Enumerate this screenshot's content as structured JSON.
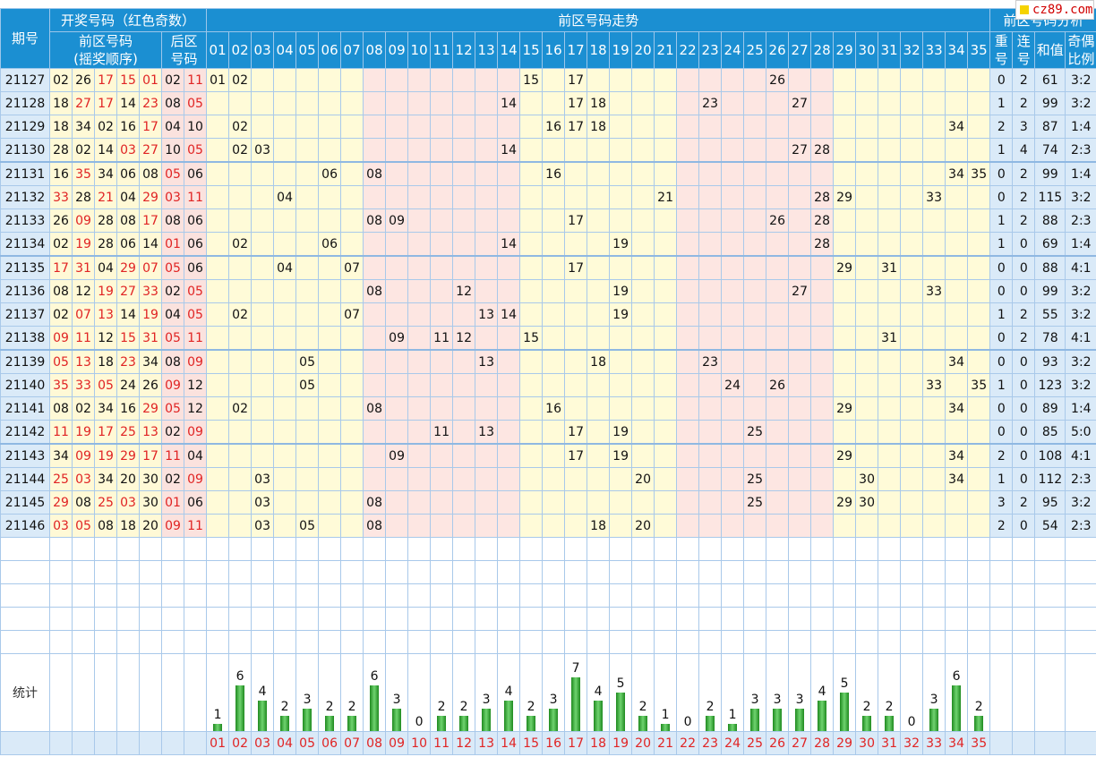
{
  "watermark": "cz89.com",
  "headers": {
    "period": "期号",
    "winning": "开奖号码（红色奇数）",
    "front_zone": "前区号码",
    "front_order": "(摇奖顺序)",
    "back_zone": "后区",
    "back_code": "号码",
    "trend": "前区号码走势",
    "analysis": "前区号码分析",
    "repeat_a": "重",
    "repeat_b": "号",
    "consec_a": "连",
    "consec_b": "号",
    "sum": "和值",
    "ratio_a": "奇偶",
    "ratio_b": "比例",
    "stat": "统计"
  },
  "columns": [
    "01",
    "02",
    "03",
    "04",
    "05",
    "06",
    "07",
    "08",
    "09",
    "10",
    "11",
    "12",
    "13",
    "14",
    "15",
    "16",
    "17",
    "18",
    "19",
    "20",
    "21",
    "22",
    "23",
    "24",
    "25",
    "26",
    "27",
    "28",
    "29",
    "30",
    "31",
    "32",
    "33",
    "34",
    "35"
  ],
  "chart_data": {
    "type": "table",
    "draws": [
      {
        "period": "21127",
        "front": [
          "02",
          "26",
          "17",
          "15",
          "01"
        ],
        "back": [
          "02",
          "11"
        ],
        "repeat": "0",
        "consec": "2",
        "sum": "61",
        "ratio": "3:2"
      },
      {
        "period": "21128",
        "front": [
          "18",
          "27",
          "17",
          "14",
          "23"
        ],
        "back": [
          "08",
          "05"
        ],
        "repeat": "1",
        "consec": "2",
        "sum": "99",
        "ratio": "3:2"
      },
      {
        "period": "21129",
        "front": [
          "18",
          "34",
          "02",
          "16",
          "17"
        ],
        "back": [
          "04",
          "10"
        ],
        "repeat": "2",
        "consec": "3",
        "sum": "87",
        "ratio": "1:4"
      },
      {
        "period": "21130",
        "front": [
          "28",
          "02",
          "14",
          "03",
          "27"
        ],
        "back": [
          "10",
          "05"
        ],
        "repeat": "1",
        "consec": "4",
        "sum": "74",
        "ratio": "2:3"
      },
      {
        "period": "21131",
        "front": [
          "16",
          "35",
          "34",
          "06",
          "08"
        ],
        "back": [
          "05",
          "06"
        ],
        "repeat": "0",
        "consec": "2",
        "sum": "99",
        "ratio": "1:4"
      },
      {
        "period": "21132",
        "front": [
          "33",
          "28",
          "21",
          "04",
          "29"
        ],
        "back": [
          "03",
          "11"
        ],
        "repeat": "0",
        "consec": "2",
        "sum": "115",
        "ratio": "3:2"
      },
      {
        "period": "21133",
        "front": [
          "26",
          "09",
          "28",
          "08",
          "17"
        ],
        "back": [
          "08",
          "06"
        ],
        "repeat": "1",
        "consec": "2",
        "sum": "88",
        "ratio": "2:3"
      },
      {
        "period": "21134",
        "front": [
          "02",
          "19",
          "28",
          "06",
          "14"
        ],
        "back": [
          "01",
          "06"
        ],
        "repeat": "1",
        "consec": "0",
        "sum": "69",
        "ratio": "1:4"
      },
      {
        "period": "21135",
        "front": [
          "17",
          "31",
          "04",
          "29",
          "07"
        ],
        "back": [
          "05",
          "06"
        ],
        "repeat": "0",
        "consec": "0",
        "sum": "88",
        "ratio": "4:1"
      },
      {
        "period": "21136",
        "front": [
          "08",
          "12",
          "19",
          "27",
          "33"
        ],
        "back": [
          "02",
          "05"
        ],
        "repeat": "0",
        "consec": "0",
        "sum": "99",
        "ratio": "3:2"
      },
      {
        "period": "21137",
        "front": [
          "02",
          "07",
          "13",
          "14",
          "19"
        ],
        "back": [
          "04",
          "05"
        ],
        "repeat": "1",
        "consec": "2",
        "sum": "55",
        "ratio": "3:2"
      },
      {
        "period": "21138",
        "front": [
          "09",
          "11",
          "12",
          "15",
          "31"
        ],
        "back": [
          "05",
          "11"
        ],
        "repeat": "0",
        "consec": "2",
        "sum": "78",
        "ratio": "4:1"
      },
      {
        "period": "21139",
        "front": [
          "05",
          "13",
          "18",
          "23",
          "34"
        ],
        "back": [
          "08",
          "09"
        ],
        "repeat": "0",
        "consec": "0",
        "sum": "93",
        "ratio": "3:2"
      },
      {
        "period": "21140",
        "front": [
          "35",
          "33",
          "05",
          "24",
          "26"
        ],
        "back": [
          "09",
          "12"
        ],
        "repeat": "1",
        "consec": "0",
        "sum": "123",
        "ratio": "3:2"
      },
      {
        "period": "21141",
        "front": [
          "08",
          "02",
          "34",
          "16",
          "29"
        ],
        "back": [
          "05",
          "12"
        ],
        "repeat": "0",
        "consec": "0",
        "sum": "89",
        "ratio": "1:4"
      },
      {
        "period": "21142",
        "front": [
          "11",
          "19",
          "17",
          "25",
          "13"
        ],
        "back": [
          "02",
          "09"
        ],
        "repeat": "0",
        "consec": "0",
        "sum": "85",
        "ratio": "5:0"
      },
      {
        "period": "21143",
        "front": [
          "34",
          "09",
          "19",
          "29",
          "17"
        ],
        "back": [
          "11",
          "04"
        ],
        "repeat": "2",
        "consec": "0",
        "sum": "108",
        "ratio": "4:1"
      },
      {
        "period": "21144",
        "front": [
          "25",
          "03",
          "34",
          "20",
          "30"
        ],
        "back": [
          "02",
          "09"
        ],
        "repeat": "1",
        "consec": "0",
        "sum": "112",
        "ratio": "2:3"
      },
      {
        "period": "21145",
        "front": [
          "29",
          "08",
          "25",
          "03",
          "30"
        ],
        "back": [
          "01",
          "06"
        ],
        "repeat": "3",
        "consec": "2",
        "sum": "95",
        "ratio": "3:2"
      },
      {
        "period": "21146",
        "front": [
          "03",
          "05",
          "08",
          "18",
          "20"
        ],
        "back": [
          "09",
          "11"
        ],
        "repeat": "2",
        "consec": "0",
        "sum": "54",
        "ratio": "2:3"
      }
    ],
    "stats": {
      "type": "bar",
      "categories": [
        "01",
        "02",
        "03",
        "04",
        "05",
        "06",
        "07",
        "08",
        "09",
        "10",
        "11",
        "12",
        "13",
        "14",
        "15",
        "16",
        "17",
        "18",
        "19",
        "20",
        "21",
        "22",
        "23",
        "24",
        "25",
        "26",
        "27",
        "28",
        "29",
        "30",
        "31",
        "32",
        "33",
        "34",
        "35"
      ],
      "values": [
        1,
        6,
        4,
        2,
        3,
        2,
        2,
        6,
        3,
        0,
        2,
        2,
        3,
        4,
        2,
        3,
        7,
        4,
        5,
        2,
        1,
        0,
        2,
        1,
        3,
        3,
        3,
        4,
        5,
        2,
        2,
        0,
        3,
        6,
        2
      ],
      "ylim": [
        0,
        7
      ]
    }
  }
}
